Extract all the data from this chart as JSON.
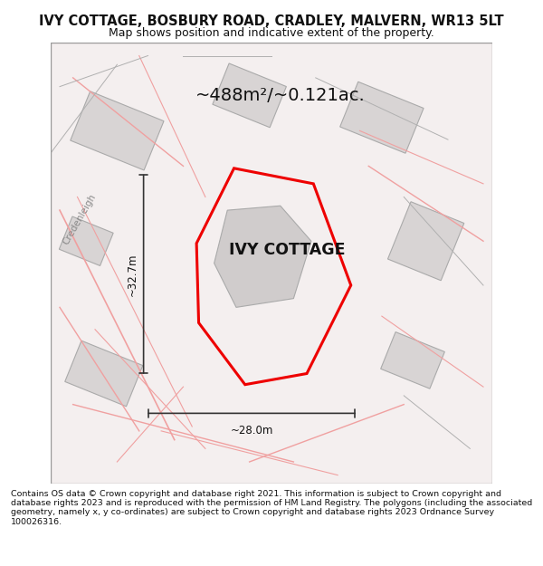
{
  "title_line1": "IVY COTTAGE, BOSBURY ROAD, CRADLEY, MALVERN, WR13 5LT",
  "title_line2": "Map shows position and indicative extent of the property.",
  "property_label": "IVY COTTAGE",
  "area_text": "~488m²/~0.121ac.",
  "dim_vertical": "~32.7m",
  "dim_horizontal": "~28.0m",
  "road_label": "Credenleigh",
  "copyright_text": "Contains OS data © Crown copyright and database right 2021. This information is subject to Crown copyright and database rights 2023 and is reproduced with the permission of HM Land Registry. The polygons (including the associated geometry, namely x, y co-ordinates) are subject to Crown copyright and database rights 2023 Ordnance Survey 100026316.",
  "bg_color": "#f5f0f0",
  "map_bg": "#f5f0f0",
  "border_color": "#cccccc",
  "red_plot_color": "#ee0000",
  "gray_building_color": "#d0d0d0",
  "pink_line_color": "#f0a0a0",
  "gray_line_color": "#b0b0b0"
}
